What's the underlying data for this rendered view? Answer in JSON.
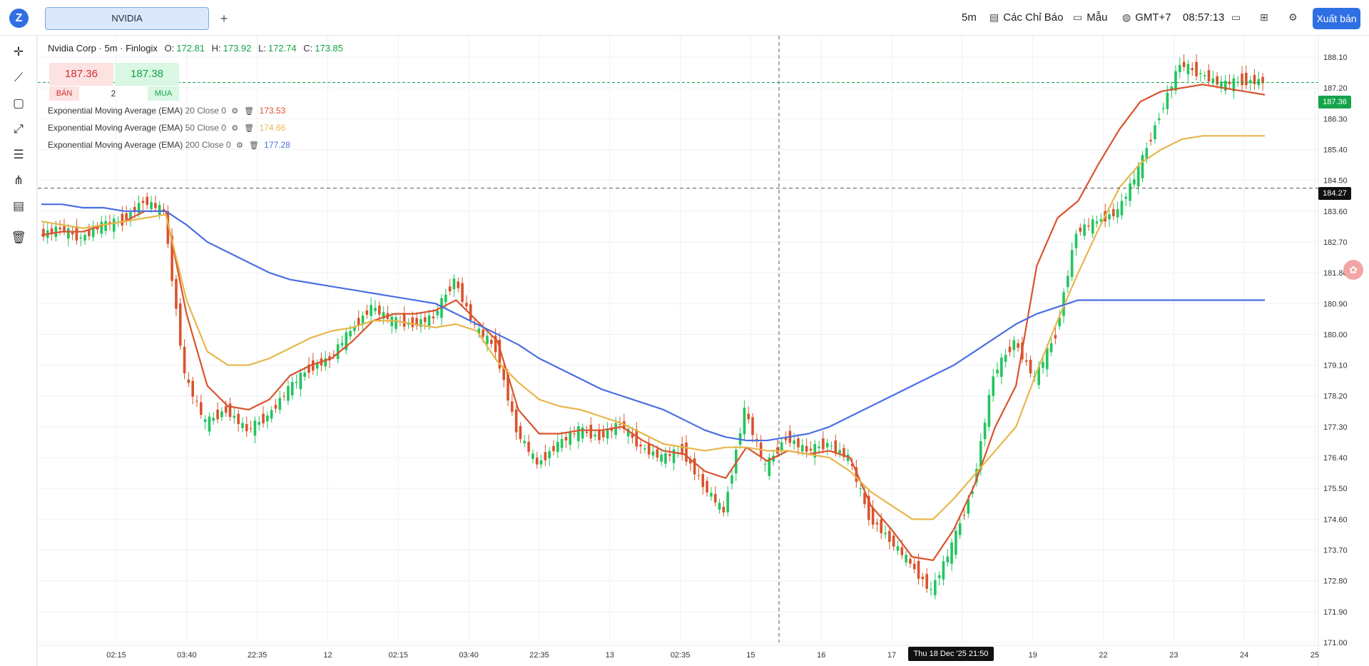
{
  "app": {
    "logo_text": "Z"
  },
  "tabs": {
    "active": "NVIDIA",
    "add": "+"
  },
  "toolbar": {
    "interval": "5m",
    "indicators": "Các Chỉ Báo",
    "templates": "Mẫu",
    "timezone": "GMT+7",
    "clock": "08:57:13",
    "export": "Xuất bản",
    "icons": {
      "indicators": "indicator-icon",
      "templates": "template-icon",
      "timezone": "globe-icon",
      "layout": "window-icon",
      "grid": "grid-icon",
      "settings": "gear-icon"
    }
  },
  "left_tools": [
    "crosshair-icon",
    "trend-line-icon",
    "rectangle-icon",
    "path-icon",
    "fib-icon",
    "pitchfork-icon",
    "text-note-icon",
    "trash-icon"
  ],
  "legend": {
    "title": "Nvidia Corp · 5m · Finlogix",
    "o_label": "O:",
    "o": "172.81",
    "h_label": "H:",
    "h": "173.92",
    "l_label": "L:",
    "l": "172.74",
    "c_label": "C:",
    "c": "173.85"
  },
  "trade": {
    "sell_price": "187.36",
    "buy_price": "187.38",
    "sell_label": "BÁN",
    "buy_label": "MUA",
    "quantity": "2"
  },
  "ema": [
    {
      "name": "Exponential Moving Average (EMA)",
      "params": "20 Close 0",
      "value": "173.53",
      "color": "#d9532c"
    },
    {
      "name": "Exponential Moving Average (EMA)",
      "params": "50 Close 0",
      "value": "174.66",
      "color": "#e8b64a"
    },
    {
      "name": "Exponential Moving Average (EMA)",
      "params": "200 Close 0",
      "value": "177.28",
      "color": "#4a6fe3"
    }
  ],
  "price_tags": {
    "current": "187.36",
    "crosshair": "184.27"
  },
  "crosshair_time": "Thu 18 Dec '25 21:50",
  "chart_data": {
    "type": "line",
    "up_color": "#22c55e",
    "down_color": "#d9532c",
    "y_ticks": [
      "188.10",
      "187.20",
      "186.30",
      "185.40",
      "184.50",
      "183.60",
      "182.70",
      "181.80",
      "180.90",
      "180.00",
      "179.10",
      "178.20",
      "177.30",
      "176.40",
      "175.50",
      "174.60",
      "173.70",
      "172.80",
      "171.90",
      "171.00"
    ],
    "x_ticks": [
      "02:15",
      "03:40",
      "22:35",
      "12",
      "02:15",
      "03:40",
      "22:35",
      "13",
      "02:35",
      "15",
      "16",
      "17",
      "18",
      "19",
      "22",
      "23",
      "24",
      "25"
    ],
    "ylim": [
      171.0,
      188.1
    ],
    "current_price": 187.36,
    "crosshair_price": 184.27,
    "x": [
      0,
      25,
      50,
      75,
      100,
      125,
      150,
      175,
      200,
      225,
      250,
      275,
      300,
      325,
      350,
      375,
      400,
      425,
      450,
      475,
      500,
      525,
      550,
      575,
      600,
      625,
      650,
      675,
      700,
      725,
      750,
      775,
      800,
      825,
      850,
      875,
      900,
      925,
      950,
      975,
      1000,
      1025,
      1050,
      1075,
      1100,
      1125,
      1150,
      1175,
      1200,
      1225,
      1250,
      1275,
      1300,
      1325,
      1350,
      1375,
      1400,
      1425,
      1450,
      1475
    ],
    "series": [
      {
        "name": "Close",
        "values": [
          182.9,
          183.1,
          182.8,
          183.2,
          183.3,
          183.9,
          183.6,
          178.8,
          177.4,
          177.8,
          177.2,
          177.6,
          178.4,
          179.0,
          179.3,
          180.1,
          180.8,
          180.4,
          180.3,
          180.5,
          181.6,
          180.2,
          179.6,
          177.2,
          176.2,
          176.8,
          177.2,
          177.0,
          177.4,
          176.7,
          176.4,
          176.6,
          175.6,
          174.8,
          177.8,
          176.1,
          177.0,
          176.6,
          176.8,
          176.4,
          174.7,
          174.0,
          173.3,
          172.5,
          173.8,
          175.5,
          178.8,
          179.8,
          178.7,
          180.0,
          183.0,
          183.3,
          183.6,
          184.8,
          186.4,
          187.9,
          187.6,
          187.3,
          187.4,
          187.4
        ]
      },
      {
        "name": "EMA 20",
        "values": [
          182.9,
          183.0,
          183.0,
          183.2,
          183.3,
          183.6,
          183.6,
          180.6,
          178.5,
          177.9,
          177.8,
          178.1,
          178.8,
          179.1,
          179.3,
          179.8,
          180.4,
          180.6,
          180.6,
          180.7,
          181.0,
          180.4,
          179.8,
          177.8,
          177.1,
          177.1,
          177.2,
          177.2,
          177.3,
          176.9,
          176.6,
          176.5,
          176.0,
          175.8,
          176.7,
          176.3,
          176.6,
          176.5,
          176.6,
          176.4,
          175.0,
          174.3,
          173.5,
          173.4,
          174.3,
          175.6,
          177.3,
          178.5,
          182.0,
          183.4,
          183.9,
          185.0,
          186.0,
          186.8,
          187.1,
          187.2,
          187.3,
          187.2,
          187.1,
          187.0
        ]
      },
      {
        "name": "EMA 50",
        "values": [
          183.3,
          183.2,
          183.1,
          183.2,
          183.3,
          183.4,
          183.5,
          181.0,
          179.5,
          179.1,
          179.1,
          179.3,
          179.6,
          179.9,
          180.1,
          180.2,
          180.4,
          180.4,
          180.3,
          180.2,
          180.3,
          180.1,
          179.2,
          178.6,
          178.1,
          177.9,
          177.8,
          177.6,
          177.4,
          177.1,
          176.8,
          176.7,
          176.6,
          176.7,
          176.7,
          176.6,
          176.6,
          176.5,
          176.4,
          176.0,
          175.4,
          175.0,
          174.6,
          174.6,
          175.2,
          175.9,
          176.6,
          177.3,
          178.9,
          180.4,
          181.8,
          183.1,
          184.3,
          185.0,
          185.4,
          185.7,
          185.8,
          185.8,
          185.8,
          185.8
        ]
      },
      {
        "name": "EMA 200",
        "values": [
          183.8,
          183.8,
          183.7,
          183.7,
          183.6,
          183.6,
          183.6,
          183.2,
          182.7,
          182.4,
          182.1,
          181.8,
          181.6,
          181.5,
          181.4,
          181.3,
          181.2,
          181.1,
          181.0,
          180.9,
          180.6,
          180.3,
          180.0,
          179.7,
          179.3,
          179.0,
          178.7,
          178.4,
          178.2,
          178.0,
          177.8,
          177.5,
          177.2,
          177.0,
          176.9,
          176.9,
          177.0,
          177.1,
          177.3,
          177.6,
          177.9,
          178.2,
          178.5,
          178.8,
          179.1,
          179.5,
          179.9,
          180.3,
          180.6,
          180.8,
          181.0,
          181.0,
          181.0,
          181.0,
          181.0,
          181.0,
          181.0,
          181.0,
          181.0,
          181.0
        ]
      }
    ]
  }
}
